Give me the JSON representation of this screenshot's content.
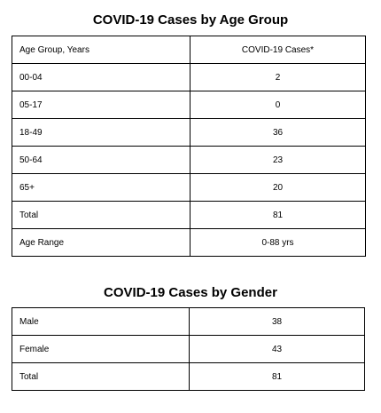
{
  "age_section": {
    "title": "COVID-19 Cases by Age Group",
    "header": {
      "col1": "Age Group, Years",
      "col2": "COVID-19 Cases*"
    },
    "rows": [
      {
        "label": "00-04",
        "value": "2"
      },
      {
        "label": "05-17",
        "value": "0"
      },
      {
        "label": "18-49",
        "value": "36"
      },
      {
        "label": "50-64",
        "value": "23"
      },
      {
        "label": "65+",
        "value": "20"
      },
      {
        "label": "Total",
        "value": "81"
      },
      {
        "label": "Age Range",
        "value": "0-88 yrs"
      }
    ]
  },
  "gender_section": {
    "title": "COVID-19 Cases by Gender",
    "rows": [
      {
        "label": "Male",
        "value": "38"
      },
      {
        "label": "Female",
        "value": "43"
      },
      {
        "label": "Total",
        "value": "81"
      }
    ]
  }
}
